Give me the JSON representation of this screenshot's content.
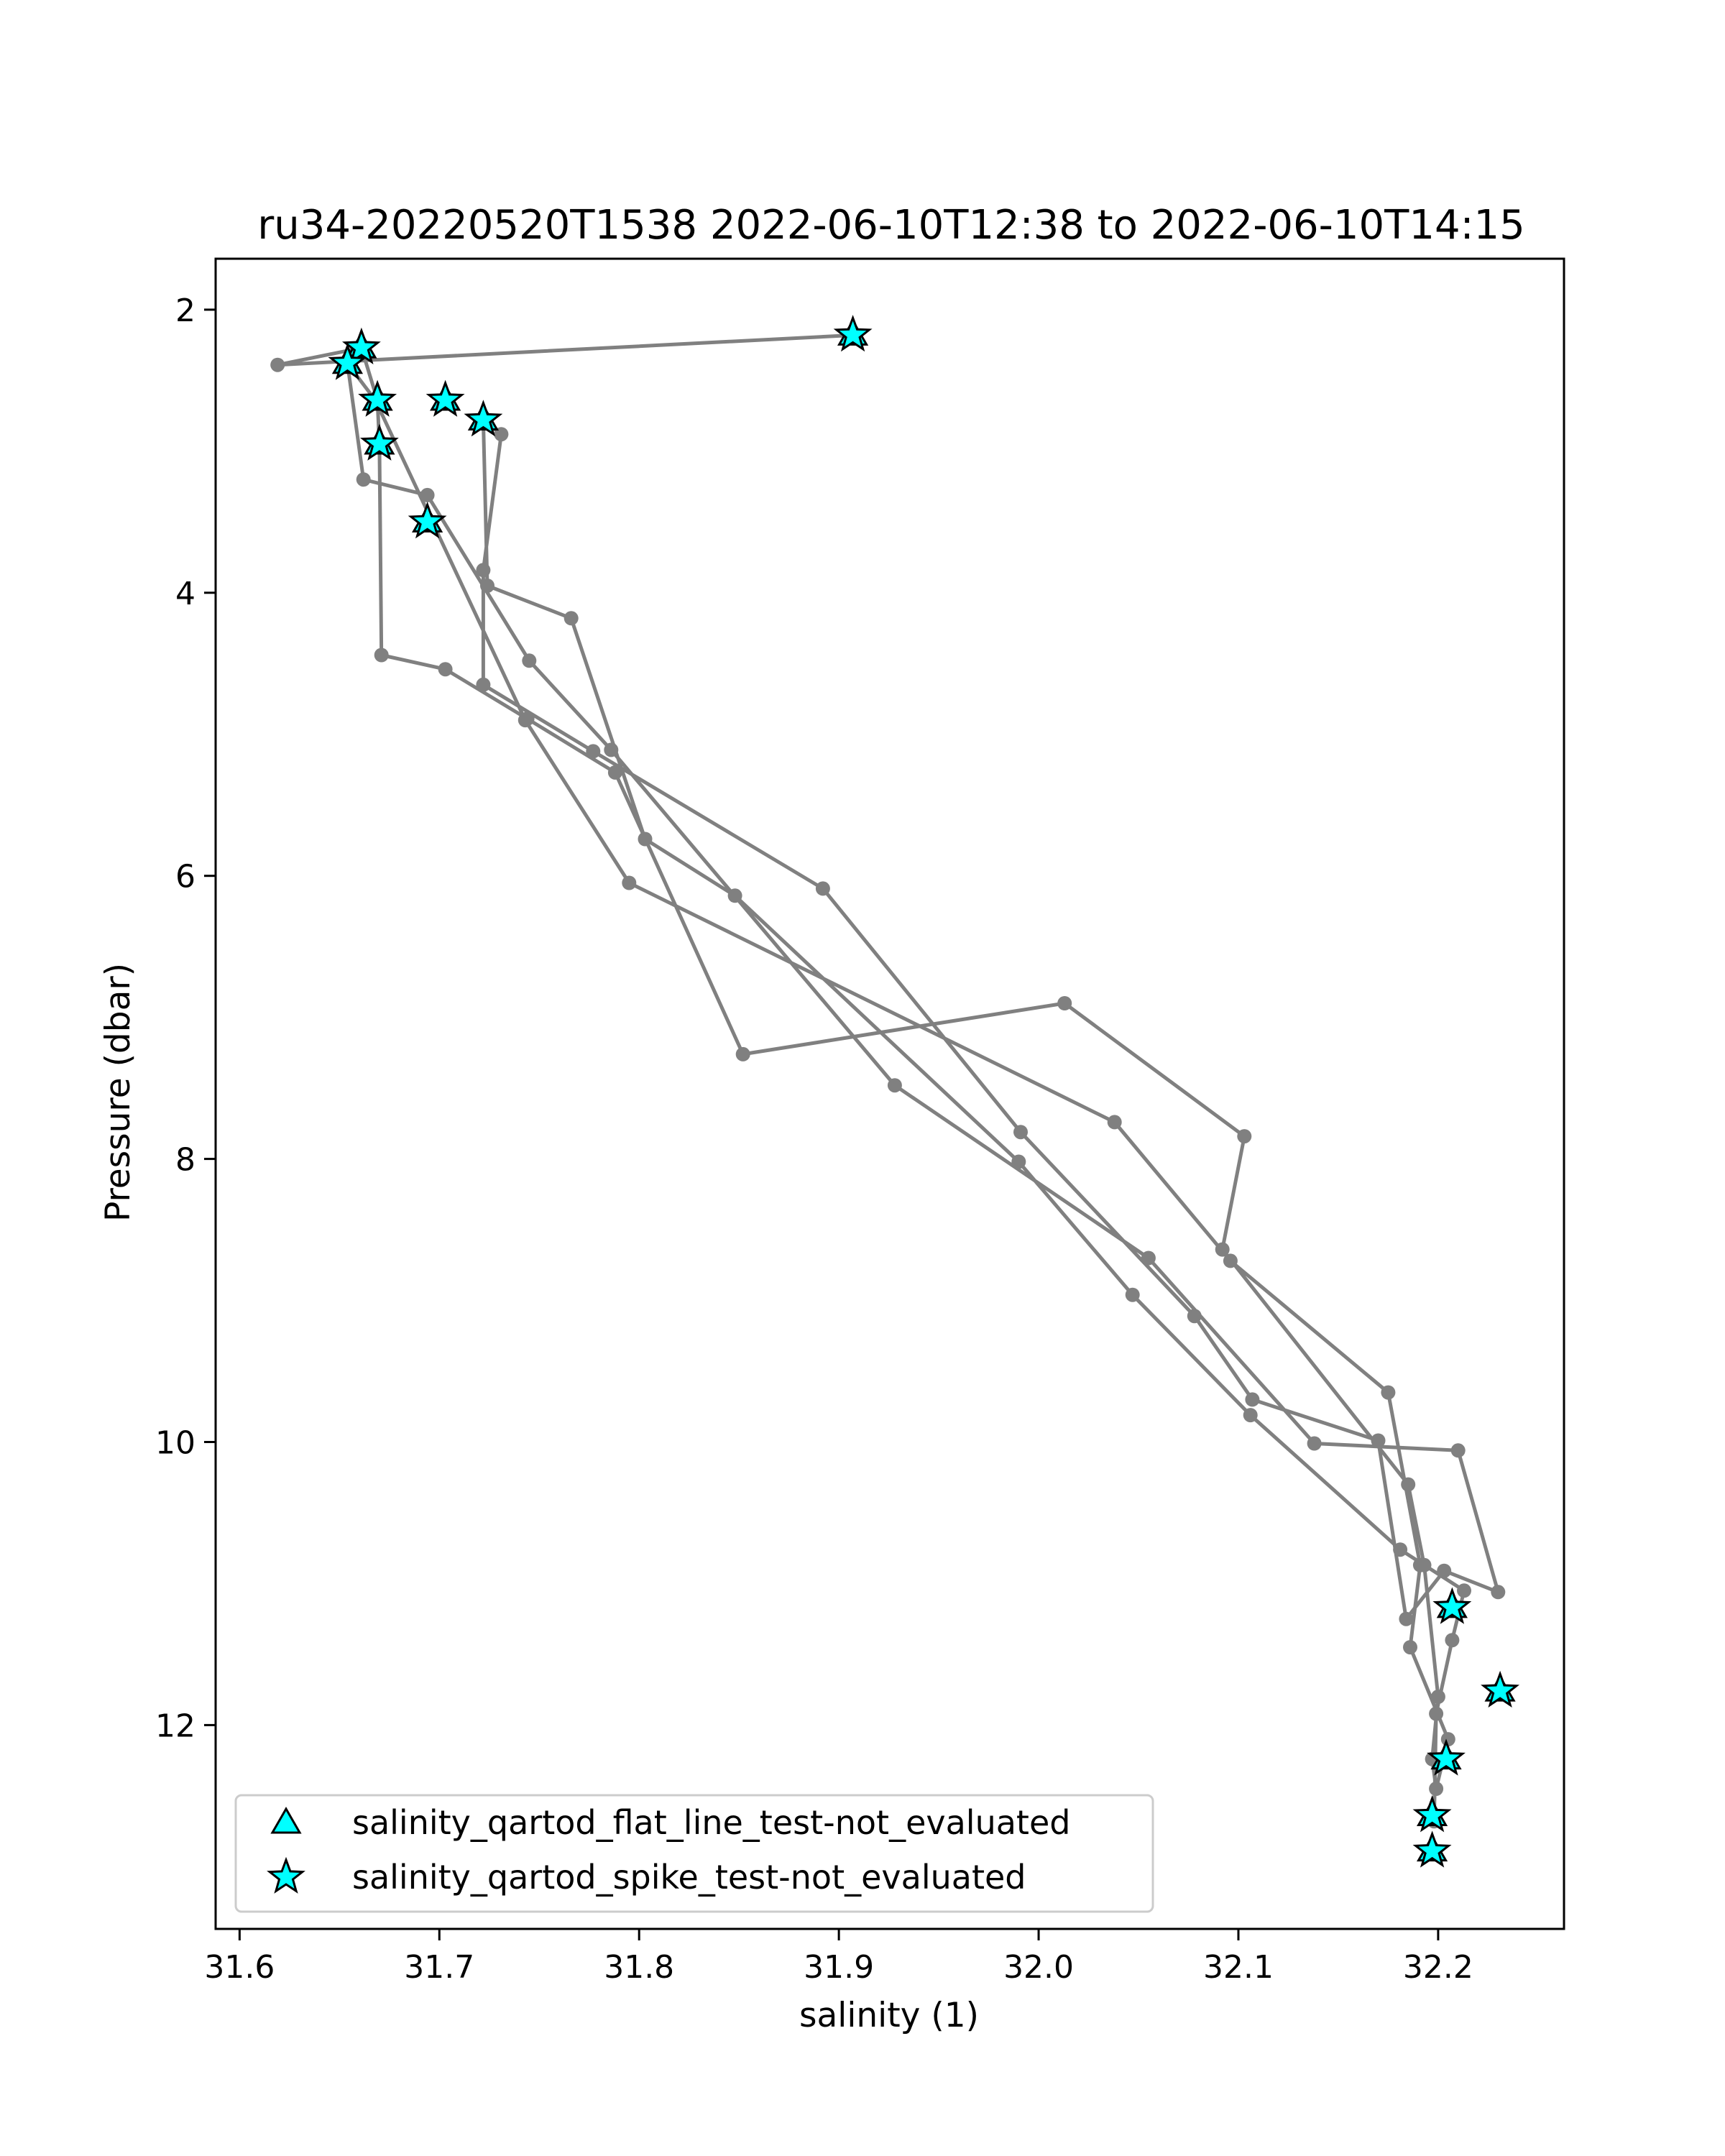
{
  "chart_data": {
    "type": "line",
    "title": "ru34-20220520T1538 2022-06-10T12:38 to 2022-06-10T14:15",
    "xlabel": "salinity (1)",
    "ylabel": "Pressure (dbar)",
    "xlim": [
      31.588,
      32.263
    ],
    "ylim": [
      13.44,
      1.64
    ],
    "y_inverted": true,
    "x_ticks": [
      31.6,
      31.7,
      31.8,
      31.9,
      32.0,
      32.1,
      32.2
    ],
    "x_tick_labels": [
      "31.6",
      "31.7",
      "31.8",
      "31.9",
      "32.0",
      "32.1",
      "32.2"
    ],
    "y_ticks": [
      2,
      4,
      6,
      8,
      10,
      12
    ],
    "y_tick_labels": [
      "2",
      "4",
      "6",
      "8",
      "10",
      "12"
    ],
    "grid": false,
    "line_color": "#808080",
    "marker_color": "#00ffff",
    "legend_position": "lower-left",
    "series": [
      {
        "name": "profile",
        "x": [
          31.907,
          31.619,
          31.661,
          31.669,
          31.67,
          31.671,
          31.703,
          31.744,
          31.788,
          31.852,
          32.013,
          32.103,
          32.092,
          32.185,
          32.193,
          32.2,
          32.197,
          32.199,
          32.205,
          32.186,
          32.191,
          32.175,
          32.096,
          32.038,
          31.795,
          31.743,
          31.668,
          31.654,
          31.662,
          31.694,
          31.745,
          31.786,
          31.928,
          32.055,
          32.138,
          32.21,
          32.23,
          32.203,
          32.184,
          32.17,
          32.107,
          32.078,
          31.991,
          31.892,
          31.777,
          31.722,
          31.722,
          31.731,
          31.722,
          31.724,
          31.766,
          31.803,
          31.848,
          31.99,
          32.047,
          32.106,
          32.181,
          32.213,
          32.207,
          32.199,
          32.198
        ],
        "y": [
          2.18,
          2.39,
          2.27,
          2.64,
          2.95,
          4.44,
          4.54,
          4.89,
          5.27,
          7.26,
          6.9,
          7.84,
          8.64,
          10.3,
          10.87,
          11.8,
          12.24,
          12.45,
          12.1,
          11.45,
          10.87,
          9.65,
          8.72,
          7.74,
          6.05,
          4.9,
          2.64,
          2.38,
          3.2,
          3.31,
          4.48,
          5.11,
          7.48,
          8.7,
          10.01,
          10.06,
          11.06,
          10.91,
          11.25,
          9.99,
          9.7,
          9.11,
          7.81,
          6.09,
          5.12,
          4.65,
          3.84,
          2.88,
          2.78,
          3.95,
          4.18,
          5.74,
          6.14,
          8.02,
          8.96,
          9.81,
          10.76,
          11.05,
          11.4,
          11.92,
          12.68
        ]
      }
    ],
    "marker_series": [
      {
        "name": "salinity_qartod_flat_line_test-not_evaluated",
        "marker": "triangle",
        "x": [
          31.907,
          31.661,
          31.654,
          31.669,
          31.703,
          31.722,
          31.67,
          31.694,
          32.207,
          32.231,
          32.204,
          32.197,
          32.197
        ],
        "y": [
          2.18,
          2.27,
          2.38,
          2.64,
          2.64,
          2.78,
          2.95,
          3.5,
          11.17,
          11.76,
          12.24,
          12.64,
          12.89
        ]
      },
      {
        "name": "salinity_qartod_spike_test-not_evaluated",
        "marker": "star",
        "x": [
          31.907,
          31.661,
          31.654,
          31.669,
          31.703,
          31.722,
          31.67,
          31.694,
          32.207,
          32.231,
          32.204,
          32.197,
          32.197
        ],
        "y": [
          2.18,
          2.27,
          2.38,
          2.64,
          2.64,
          2.78,
          2.95,
          3.5,
          11.17,
          11.76,
          12.24,
          12.64,
          12.89
        ]
      }
    ]
  }
}
